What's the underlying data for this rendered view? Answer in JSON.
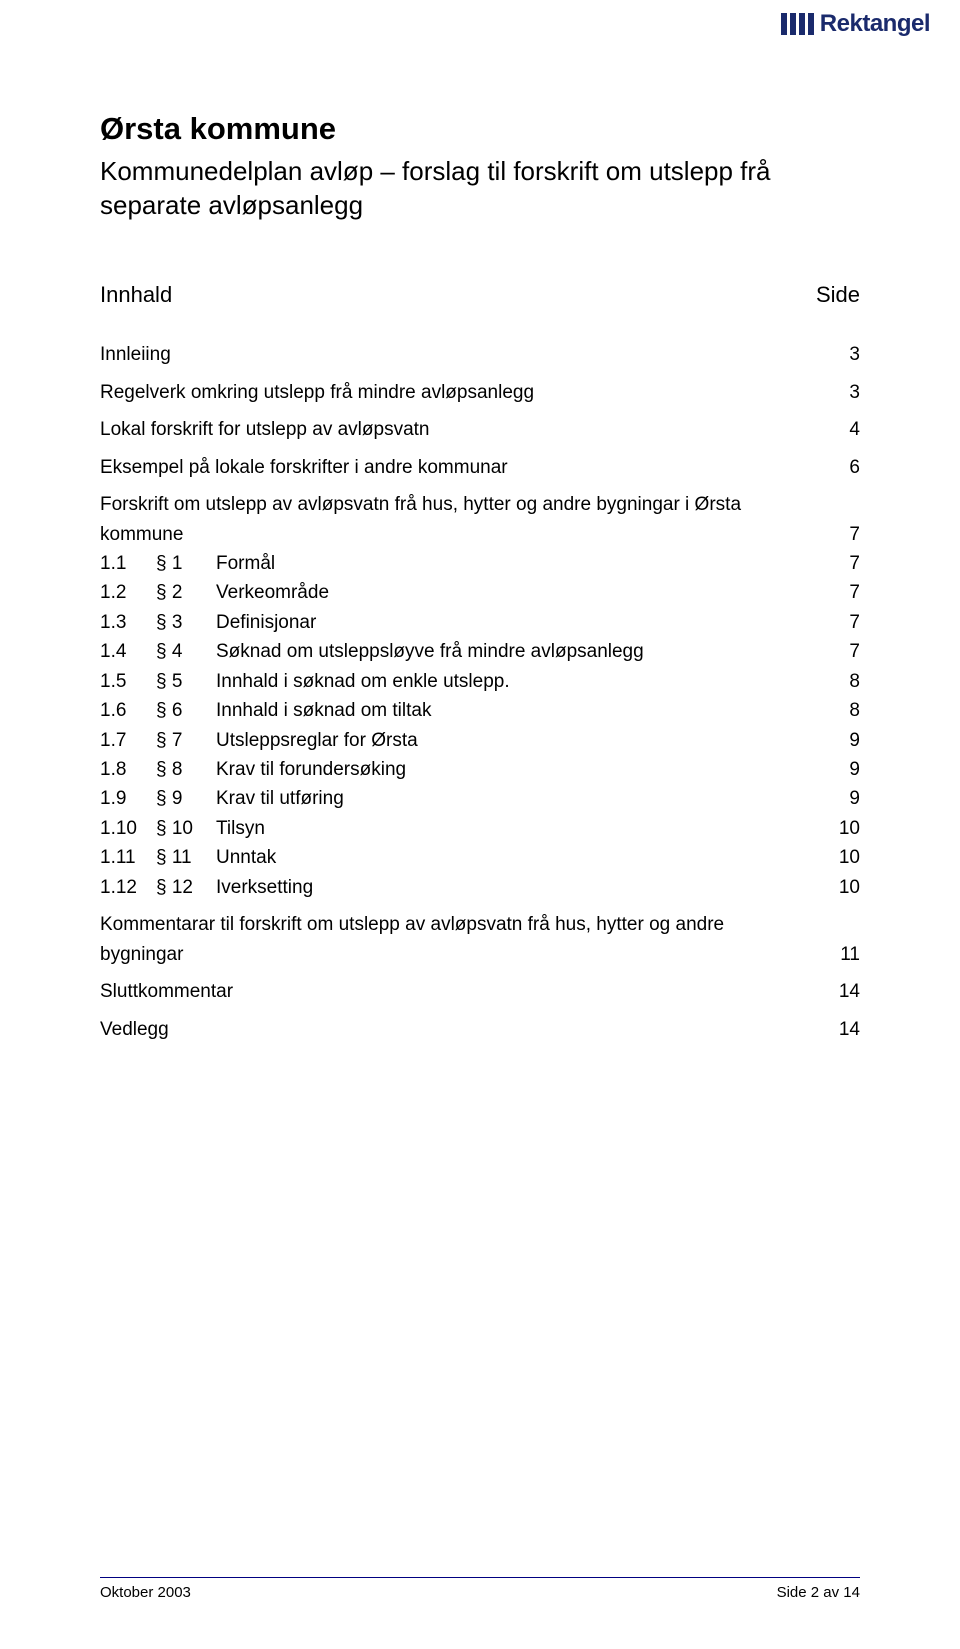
{
  "logo": {
    "text": "Rektangel",
    "bar_color": "#1a2a6c",
    "text_color": "#1a2a6c"
  },
  "document": {
    "title": "Ørsta kommune",
    "subtitle": "Kommunedelplan avløp – forslag til forskrift om utslepp frå separate avløpsanlegg"
  },
  "toc_header": {
    "left": "Innhald",
    "right": "Side"
  },
  "toc": [
    {
      "level": 1,
      "num": "",
      "sec": "",
      "label": "Innleiing",
      "page": "3"
    },
    {
      "level": 1,
      "num": "",
      "sec": "",
      "label": "Regelverk omkring utslepp frå mindre avløpsanlegg",
      "page": "3"
    },
    {
      "level": 1,
      "num": "",
      "sec": "",
      "label": "Lokal forskrift for utslepp av avløpsvatn",
      "page": "4"
    },
    {
      "level": 1,
      "num": "",
      "sec": "",
      "label": "Eksempel på lokale forskrifter i andre kommunar",
      "page": "6"
    },
    {
      "level": 1,
      "num": "",
      "sec": "",
      "label_line1": "Forskrift om utslepp av avløpsvatn frå hus, hytter og andre bygningar i Ørsta",
      "label_line2": "kommune",
      "page": "7",
      "multiline": true
    },
    {
      "level": 2,
      "num": "1.1",
      "sec": "§ 1",
      "label": "Formål",
      "page": "7"
    },
    {
      "level": 2,
      "num": "1.2",
      "sec": "§ 2",
      "label": "Verkeområde",
      "page": "7"
    },
    {
      "level": 2,
      "num": "1.3",
      "sec": "§ 3",
      "label": "Definisjonar",
      "page": "7"
    },
    {
      "level": 2,
      "num": "1.4",
      "sec": "§ 4",
      "label": "Søknad om utsleppsløyve frå mindre avløpsanlegg",
      "page": "7"
    },
    {
      "level": 2,
      "num": "1.5",
      "sec": "§ 5",
      "label": "Innhald i søknad om enkle utslepp.",
      "page": "8"
    },
    {
      "level": 2,
      "num": "1.6",
      "sec": "§ 6",
      "label": "Innhald i søknad om tiltak",
      "page": "8"
    },
    {
      "level": 2,
      "num": "1.7",
      "sec": "§ 7",
      "label": "Utsleppsreglar for Ørsta",
      "page": "9"
    },
    {
      "level": 2,
      "num": "1.8",
      "sec": "§ 8",
      "label": "Krav til forundersøking",
      "page": "9"
    },
    {
      "level": 2,
      "num": "1.9",
      "sec": "§ 9",
      "label": "Krav til utføring",
      "page": "9"
    },
    {
      "level": 2,
      "num": "1.10",
      "sec": "§ 10",
      "label": "Tilsyn",
      "page": "10"
    },
    {
      "level": 2,
      "num": "1.11",
      "sec": "§ 11",
      "label": "Unntak",
      "page": "10"
    },
    {
      "level": 2,
      "num": "1.12",
      "sec": "§ 12",
      "label": "Iverksetting",
      "page": "10"
    },
    {
      "level": 1,
      "num": "",
      "sec": "",
      "label_line1": "Kommentarar til forskrift om utslepp av avløpsvatn frå hus, hytter og andre",
      "label_line2": "bygningar",
      "page": "11",
      "multiline": true
    },
    {
      "level": 1,
      "num": "",
      "sec": "",
      "label": "Sluttkommentar",
      "page": "14"
    },
    {
      "level": 1,
      "num": "",
      "sec": "",
      "label": "Vedlegg",
      "page": "14"
    }
  ],
  "footer": {
    "left": "Oktober 2003",
    "right": "Side 2 av 14",
    "line_color": "#000080"
  },
  "colors": {
    "text": "#000000",
    "background": "#ffffff"
  }
}
